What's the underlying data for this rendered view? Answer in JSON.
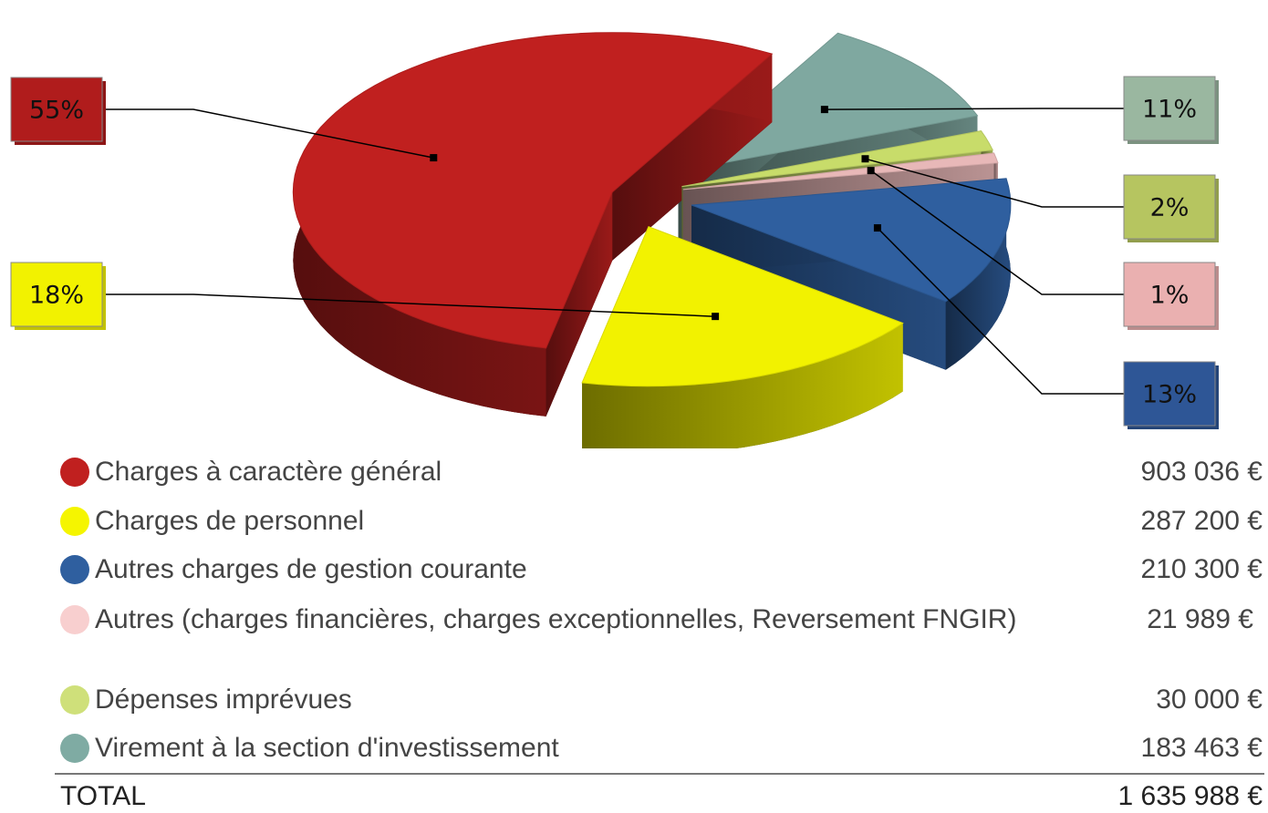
{
  "chart_data": {
    "type": "pie",
    "categories": [
      "Charges à caractère général",
      "Charges de personnel",
      "Autres charges de gestion courante",
      "Autres (charges financières, charges    exceptionnelles, Reversement FNGIR)",
      "Dépenses imprévues",
      "Virement à la section d'investissement"
    ],
    "values": [
      55,
      18,
      13,
      1,
      2,
      11
    ],
    "value_labels": [
      "55%",
      "18%",
      "13%",
      "1%",
      "2%",
      "11%"
    ],
    "colors": [
      "#c0201f",
      "#f2f200",
      "#2f5f9f",
      "#e8b8b8",
      "#c8dc6a",
      "#7fa8a0"
    ],
    "legend_colors": [
      "#c0201f",
      "#f5f500",
      "#2f5f9f",
      "#f8cfcf",
      "#cfe07a",
      "#7faba3"
    ],
    "label_colors": [
      "#b01c1c",
      "#f2f200",
      "#2e5696",
      "#eab0b0",
      "#b6c560",
      "#9ab7a0"
    ],
    "amounts": [
      "903 036 €",
      "287 200 €",
      "210 300 €",
      "21 989 €",
      "30 000 €",
      "183 463 €"
    ],
    "total_label": "TOTAL",
    "total_amount": "1 635 988 €"
  }
}
